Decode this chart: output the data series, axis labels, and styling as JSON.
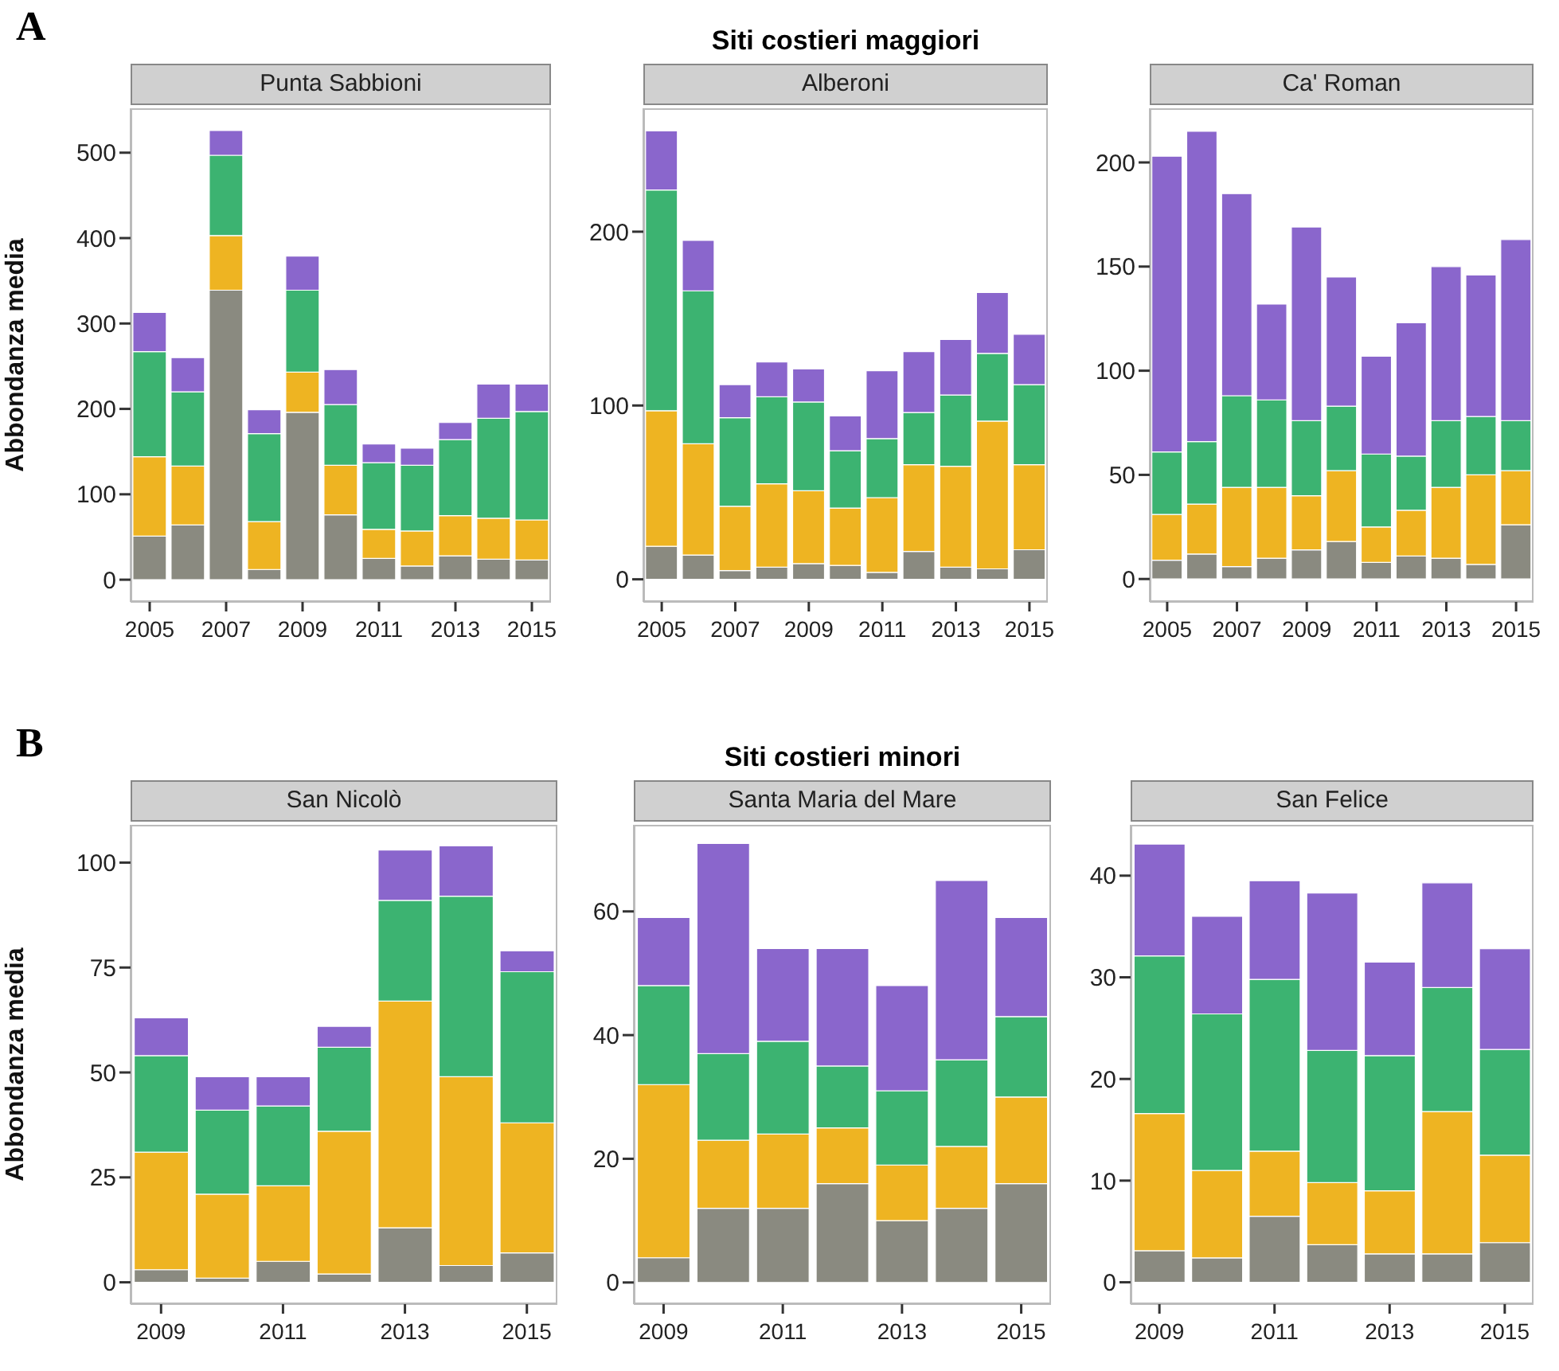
{
  "chart_data": [
    {
      "type": "bar",
      "stacked": true,
      "subtitle": "Punta Sabbioni",
      "ylabel": "Abbondanza media",
      "annotations": [
        "A"
      ],
      "categories": [
        "2005",
        null,
        "2007",
        null,
        "2009",
        null,
        "2011",
        null,
        "2013",
        null,
        "2015"
      ],
      "ylim": [
        -26,
        552
      ],
      "yticks": [
        0,
        100,
        200,
        300,
        400,
        500
      ],
      "series": [
        {
          "color": "#8a8a80",
          "values": [
            51,
            64,
            339,
            12,
            196,
            76,
            25,
            16,
            28,
            24,
            23
          ]
        },
        {
          "color": "#eeb422",
          "values": [
            93,
            69,
            64,
            56,
            47,
            58,
            34,
            41,
            47,
            48,
            47
          ]
        },
        {
          "color": "#3cb371",
          "values": [
            123,
            87,
            94,
            103,
            96,
            71,
            78,
            77,
            89,
            117,
            127
          ]
        },
        {
          "color": "#8a66cc",
          "values": [
            46,
            40,
            29,
            28,
            40,
            41,
            22,
            20,
            20,
            40,
            32
          ]
        }
      ]
    },
    {
      "type": "bar",
      "stacked": true,
      "title": "Siti costieri maggiori",
      "subtitle": "Alberoni",
      "categories": [
        "2005",
        null,
        "2007",
        null,
        "2009",
        null,
        "2011",
        null,
        "2013",
        null,
        "2015"
      ],
      "ylim": [
        -13,
        271
      ],
      "yticks": [
        0,
        100,
        200
      ],
      "series": [
        {
          "color": "#8a8a80",
          "values": [
            19,
            14,
            5,
            7,
            9,
            8,
            4,
            16,
            7,
            6,
            17
          ]
        },
        {
          "color": "#eeb422",
          "values": [
            78,
            64,
            37,
            48,
            42,
            33,
            43,
            50,
            58,
            85,
            49
          ]
        },
        {
          "color": "#3cb371",
          "values": [
            127,
            88,
            51,
            50,
            51,
            33,
            34,
            30,
            41,
            39,
            46
          ]
        },
        {
          "color": "#8a66cc",
          "values": [
            34,
            29,
            19,
            20,
            19,
            20,
            39,
            35,
            32,
            35,
            29
          ]
        }
      ]
    },
    {
      "type": "bar",
      "stacked": true,
      "subtitle": "Ca' Roman",
      "categories": [
        "2005",
        null,
        "2007",
        null,
        "2009",
        null,
        "2011",
        null,
        "2013",
        null,
        "2015"
      ],
      "ylim": [
        -11,
        226
      ],
      "yticks": [
        0,
        50,
        100,
        150,
        200
      ],
      "series": [
        {
          "color": "#8a8a80",
          "values": [
            9,
            12,
            6,
            10,
            14,
            18,
            8,
            11,
            10,
            7,
            26
          ]
        },
        {
          "color": "#eeb422",
          "values": [
            22,
            24,
            38,
            34,
            26,
            34,
            17,
            22,
            34,
            43,
            26
          ]
        },
        {
          "color": "#3cb371",
          "values": [
            30,
            30,
            44,
            42,
            36,
            31,
            35,
            26,
            32,
            28,
            24
          ]
        },
        {
          "color": "#8a66cc",
          "values": [
            142,
            149,
            97,
            46,
            93,
            62,
            47,
            64,
            74,
            68,
            87
          ]
        }
      ]
    },
    {
      "type": "bar",
      "stacked": true,
      "subtitle": "San Nicolò",
      "ylabel": "Abbondanza media",
      "annotations": [
        "B"
      ],
      "categories": [
        "2009",
        null,
        "2011",
        null,
        "2013",
        null,
        "2015"
      ],
      "ylim": [
        -5.2,
        109
      ],
      "yticks": [
        0,
        25,
        50,
        75,
        100
      ],
      "series": [
        {
          "color": "#8a8a80",
          "values": [
            3,
            1,
            5,
            2,
            13,
            4,
            7
          ]
        },
        {
          "color": "#eeb422",
          "values": [
            28,
            20,
            18,
            34,
            54,
            45,
            31
          ]
        },
        {
          "color": "#3cb371",
          "values": [
            23,
            20,
            19,
            20,
            24,
            43,
            36
          ]
        },
        {
          "color": "#8a66cc",
          "values": [
            9,
            8,
            7,
            5,
            12,
            12,
            5
          ]
        }
      ]
    },
    {
      "type": "bar",
      "stacked": true,
      "title": "Siti costieri minori",
      "subtitle": "Santa Maria del Mare",
      "categories": [
        "2009",
        null,
        "2011",
        null,
        "2013",
        null,
        "2015"
      ],
      "ylim": [
        -3.5,
        74
      ],
      "yticks": [
        0,
        20,
        40,
        60
      ],
      "series": [
        {
          "color": "#8a8a80",
          "values": [
            4,
            12,
            12,
            16,
            10,
            12,
            16
          ]
        },
        {
          "color": "#eeb422",
          "values": [
            28,
            11,
            12,
            9,
            9,
            10,
            14
          ]
        },
        {
          "color": "#3cb371",
          "values": [
            16,
            14,
            15,
            10,
            12,
            14,
            13
          ]
        },
        {
          "color": "#8a66cc",
          "values": [
            11,
            34,
            15,
            19,
            17,
            29,
            16
          ]
        }
      ]
    },
    {
      "type": "bar",
      "stacked": true,
      "subtitle": "San Felice",
      "categories": [
        "2009",
        null,
        "2011",
        null,
        "2013",
        null,
        "2015"
      ],
      "ylim": [
        -2.15,
        45
      ],
      "yticks": [
        0,
        10,
        20,
        30,
        40
      ],
      "series": [
        {
          "color": "#8a8a80",
          "values": [
            3.1,
            2.4,
            6.5,
            3.7,
            2.8,
            2.8,
            3.9
          ]
        },
        {
          "color": "#eeb422",
          "values": [
            13.5,
            8.6,
            6.4,
            6.1,
            6.2,
            14,
            8.6
          ]
        },
        {
          "color": "#3cb371",
          "values": [
            15.5,
            15.4,
            16.9,
            13,
            13.3,
            12.2,
            10.4
          ]
        },
        {
          "color": "#8a66cc",
          "values": [
            11,
            9.6,
            9.7,
            15.5,
            9.2,
            10.3,
            9.9
          ]
        }
      ]
    }
  ]
}
